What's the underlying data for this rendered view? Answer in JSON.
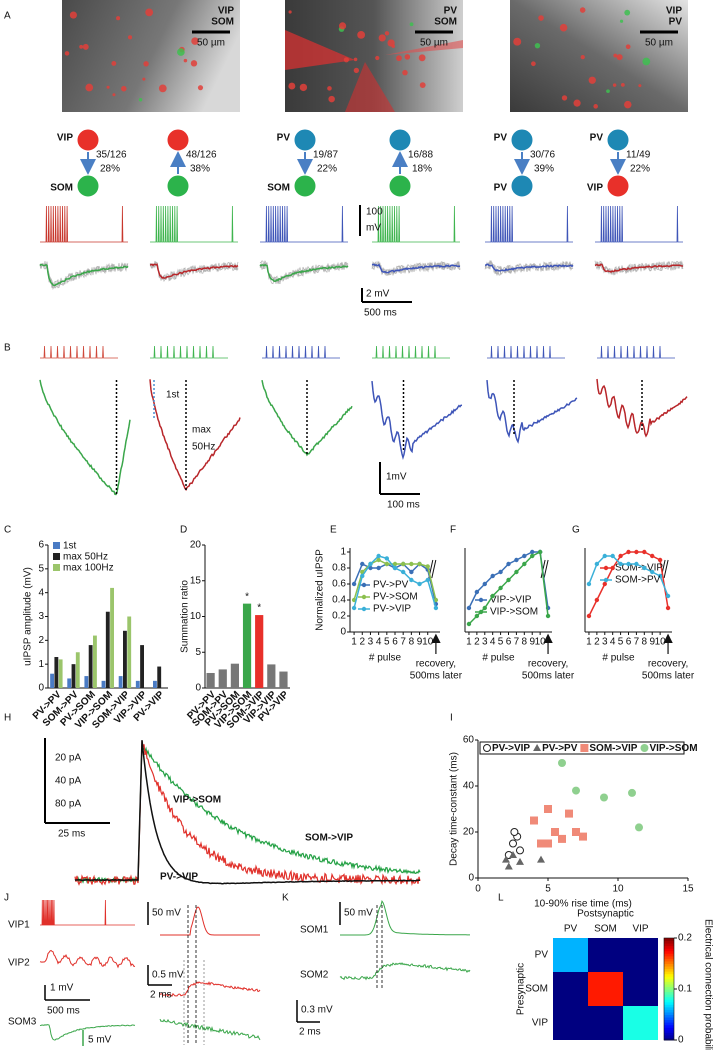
{
  "panel_labels": [
    "A",
    "B",
    "C",
    "D",
    "E",
    "F",
    "G",
    "H",
    "I",
    "J",
    "K",
    "L"
  ],
  "panel_a": {
    "images": [
      {
        "labels": [
          {
            "text": "VIP",
            "color": "#e8262a"
          },
          {
            "text": "SOM",
            "color": "#2fb24a"
          }
        ],
        "scale": "50 µm"
      },
      {
        "labels": [
          {
            "text": "PV",
            "color": "#e8262a"
          },
          {
            "text": "SOM",
            "color": "#2fb24a"
          }
        ],
        "scale": "50 µm"
      },
      {
        "labels": [
          {
            "text": "VIP",
            "color": "#e8262a"
          },
          {
            "text": "PV",
            "color": "#2fb24a"
          }
        ],
        "scale": "50 µm"
      }
    ],
    "connections": [
      {
        "top": "VIP",
        "top_color": "#e8302a",
        "bottom": "SOM",
        "bottom_color": "#2cb34b",
        "arrow": "down",
        "ratio": "35/126",
        "percent": "28%",
        "spike_color": "#c8372d",
        "response_color": "#3aa64a"
      },
      {
        "top_color": "#e8302a",
        "bottom_color": "#2cb34b",
        "arrow": "up",
        "ratio": "48/126",
        "percent": "38%",
        "spike_color": "#3fb54f",
        "response_color": "#b8262a"
      },
      {
        "top": "PV",
        "top_color": "#1e88b4",
        "bottom": "SOM",
        "bottom_color": "#2cb34b",
        "arrow": "down",
        "ratio": "19/87",
        "percent": "22%",
        "spike_color": "#3e55b8",
        "response_color": "#3aa64a"
      },
      {
        "top_color": "#1e88b4",
        "bottom_color": "#2cb34b",
        "arrow": "up",
        "ratio": "16/88",
        "percent": "18%",
        "spike_color": "#3fb54f",
        "response_color": "#3e55b8"
      },
      {
        "top": "PV",
        "top_color": "#1e88b4",
        "bottom": "PV",
        "bottom_color": "#1e88b4",
        "arrow": "down",
        "ratio": "30/76",
        "percent": "39%",
        "spike_color": "#3e55b8",
        "response_color": "#3e55b8"
      },
      {
        "top": "PV",
        "top_color": "#1e88b4",
        "bottom": "VIP",
        "bottom_color": "#e8302a",
        "arrow": "down",
        "ratio": "11/49",
        "percent": "22%",
        "spike_color": "#3e55b8",
        "response_color": "#b8262a"
      }
    ],
    "scale_spike": [
      "100",
      "mV"
    ],
    "scale_response": "2 mV",
    "scale_time": "500 ms"
  },
  "panel_b": {
    "columns": [
      {
        "train_color": "#d0483a",
        "trace_color": "#3aa64a"
      },
      {
        "train_color": "#3fb54f",
        "trace_color": "#b8262a"
      },
      {
        "train_color": "#3e55b8",
        "trace_color": "#3aa64a"
      },
      {
        "train_color": "#3fb54f",
        "trace_color": "#3e55b8"
      },
      {
        "train_color": "#3e55b8",
        "trace_color": "#3e55b8"
      },
      {
        "train_color": "#3e55b8",
        "trace_color": "#b8262a"
      }
    ],
    "first": "1st",
    "max": [
      "max",
      "50Hz"
    ],
    "scale_v": "1mV",
    "scale_t": "100 ms"
  },
  "panel_h": {
    "legend": [
      {
        "text": "20 pA",
        "color": "#2aa84a"
      },
      {
        "text": "40 pA",
        "color": "#e0302a"
      },
      {
        "text": "80 pA",
        "color": "#111111"
      }
    ],
    "scale_time": "25 ms",
    "traces": [
      {
        "text": "VIP->SOM",
        "color": "#22a043"
      },
      {
        "text": "SOM->VIP",
        "color": "#e0302a"
      },
      {
        "text": "PV->VIP",
        "color": "#111111"
      }
    ]
  },
  "panel_j": {
    "traces": [
      "VIP1",
      "VIP2",
      "SOM3"
    ],
    "scales": [
      "1 mV",
      "500 ms",
      "5 mV",
      "50 mV",
      "0.5 mV",
      "2 ms"
    ]
  },
  "panel_k": {
    "traces": [
      "SOM1",
      "SOM2"
    ],
    "scales": [
      "50 mV",
      "0.3 mV",
      "2 ms"
    ]
  },
  "chart_data": [
    {
      "type": "bar",
      "ylabel": "uIPSP amplitude (mV)",
      "categories": [
        "PV->PV",
        "SOM->PV",
        "PV->SOM",
        "VIP->SOM",
        "SOM->VIP",
        "VIP->VIP",
        "PV->VIP"
      ],
      "series": [
        {
          "name": "1st",
          "color": "#4a7bc4",
          "values": [
            0.6,
            0.4,
            0.5,
            0.3,
            0.5,
            0.3,
            0.3
          ]
        },
        {
          "name": "max 50Hz",
          "color": "#222222",
          "values": [
            1.3,
            1.0,
            1.8,
            3.2,
            2.4,
            1.8,
            0.9
          ]
        },
        {
          "name": "max 100Hz",
          "color": "#9bc56b",
          "values": [
            1.2,
            1.5,
            2.2,
            4.2,
            3.0,
            null,
            null
          ]
        }
      ],
      "ylim": [
        0,
        6
      ],
      "yticks": [
        0,
        1,
        2,
        3,
        4,
        5,
        6
      ]
    },
    {
      "type": "bar",
      "ylabel": "Summation ratio",
      "categories": [
        "PV->PV",
        "SOM->PV",
        "PV->SOM",
        "VIP->SOM",
        "SOM->VIP",
        "VIP->VIP",
        "PV->VIP"
      ],
      "values": [
        2.1,
        2.6,
        3.4,
        11.8,
        10.2,
        3.3,
        2.3
      ],
      "colors": [
        "#777777",
        "#777777",
        "#777777",
        "#3aa64a",
        "#e8302a",
        "#777777",
        "#777777"
      ],
      "markers": [
        null,
        null,
        null,
        "*",
        "*",
        null,
        null
      ],
      "ylim": [
        0,
        20
      ],
      "yticks": [
        0,
        5,
        10,
        15,
        20
      ]
    },
    {
      "type": "line",
      "ylabel": "Normalized uIPSP",
      "xlabel": "# pulse",
      "note": [
        "recovery,",
        "500ms later"
      ],
      "x": [
        1,
        2,
        3,
        4,
        5,
        6,
        7,
        8,
        9,
        10,
        11
      ],
      "xticks": [
        1,
        2,
        3,
        4,
        5,
        6,
        7,
        8,
        9,
        10
      ],
      "xlim": [
        0.5,
        11.5
      ],
      "ylim": [
        0,
        1.05
      ],
      "yticks": [
        0,
        0.2,
        0.4,
        0.6,
        0.8,
        1
      ],
      "series": [
        {
          "name": "PV->PV",
          "color": "#3a6fb6",
          "values": [
            0.6,
            0.85,
            0.8,
            0.8,
            0.85,
            0.8,
            0.85,
            0.75,
            0.85,
            0.78,
            0.35
          ]
        },
        {
          "name": "PV->SOM",
          "color": "#8cc04f",
          "values": [
            0.4,
            0.75,
            0.85,
            0.9,
            0.85,
            0.85,
            0.85,
            0.85,
            0.85,
            0.82,
            0.4
          ]
        },
        {
          "name": "PV->VIP",
          "color": "#3ab0d8",
          "values": [
            0.3,
            0.7,
            0.85,
            0.95,
            0.92,
            0.8,
            0.75,
            0.65,
            0.6,
            0.65,
            0.3
          ]
        }
      ]
    },
    {
      "type": "line",
      "xlabel": "# pulse",
      "note": [
        "recovery,",
        "500ms later"
      ],
      "x": [
        1,
        2,
        3,
        4,
        5,
        6,
        7,
        8,
        9,
        10,
        11
      ],
      "xticks": [
        1,
        2,
        3,
        4,
        5,
        6,
        7,
        8,
        9,
        10
      ],
      "xlim": [
        0.5,
        11.5
      ],
      "ylim": [
        0,
        1.05
      ],
      "series": [
        {
          "name": "VIP->VIP",
          "color": "#3a6fb6",
          "values": [
            0.3,
            0.5,
            0.6,
            0.7,
            0.75,
            0.85,
            0.9,
            0.95,
            1,
            1,
            0.3
          ]
        },
        {
          "name": "VIP->SOM",
          "color": "#3aa64a",
          "values": [
            0.1,
            0.2,
            0.3,
            0.45,
            0.55,
            0.65,
            0.75,
            0.85,
            0.95,
            1,
            0.2
          ]
        }
      ]
    },
    {
      "type": "line",
      "xlabel": "# pulse",
      "note": [
        "recovery,",
        "500ms later"
      ],
      "x": [
        1,
        2,
        3,
        4,
        5,
        6,
        7,
        8,
        9,
        10,
        11
      ],
      "xticks": [
        1,
        2,
        3,
        4,
        5,
        6,
        7,
        8,
        9,
        10
      ],
      "xlim": [
        0.5,
        11.5
      ],
      "ylim": [
        0,
        1.05
      ],
      "series": [
        {
          "name": "SOM->VIP",
          "color": "#e8302a",
          "values": [
            0.2,
            0.4,
            0.6,
            0.8,
            0.95,
            1,
            1,
            1,
            0.95,
            0.9,
            0.3
          ]
        },
        {
          "name": "SOM->PV",
          "color": "#3ab0d8",
          "values": [
            0.6,
            0.85,
            0.95,
            0.95,
            0.85,
            0.85,
            0.85,
            0.8,
            0.75,
            0.7,
            0.45
          ]
        }
      ]
    },
    {
      "type": "scatter",
      "xlabel": "10-90% rise time (ms)",
      "ylabel": "Decay time-constant (ms)",
      "xlim": [
        0,
        15
      ],
      "xticks": [
        0,
        5,
        10,
        15
      ],
      "ylim": [
        0,
        60
      ],
      "yticks": [
        0,
        20,
        40,
        60
      ],
      "series": [
        {
          "name": "PV->VIP",
          "color": "#222222",
          "marker": "circle-open",
          "x": [
            2.5,
            2.8,
            3,
            2.2,
            2.6
          ],
          "y": [
            15,
            18,
            12,
            10,
            20
          ]
        },
        {
          "name": "PV->PV",
          "color": "#666666",
          "marker": "triangle",
          "x": [
            2,
            2.2,
            2.5,
            3,
            4.5
          ],
          "y": [
            8,
            5,
            10,
            7,
            8
          ]
        },
        {
          "name": "SOM->VIP",
          "color": "#f08a78",
          "marker": "square",
          "x": [
            4,
            5,
            5.5,
            6,
            6.5,
            7,
            5,
            7.5,
            4.5
          ],
          "y": [
            25,
            30,
            20,
            17,
            28,
            20,
            15,
            18,
            15
          ]
        },
        {
          "name": "VIP->SOM",
          "color": "#8fd08f",
          "marker": "circle",
          "x": [
            6,
            7,
            9,
            11,
            11.5
          ],
          "y": [
            50,
            38,
            35,
            37,
            22
          ]
        }
      ]
    },
    {
      "type": "heatmap",
      "xlabel": "Postsynaptic",
      "ylabel": "Presynaptic",
      "categories": [
        "PV",
        "SOM",
        "VIP"
      ],
      "matrix": [
        [
          0.06,
          0,
          0
        ],
        [
          0,
          0.17,
          0
        ],
        [
          0,
          0,
          0.08
        ]
      ],
      "colorbar_label": "Electrical connection probability",
      "clim": [
        0,
        0.2
      ],
      "cticks": [
        0,
        0.1,
        0.2
      ]
    }
  ]
}
